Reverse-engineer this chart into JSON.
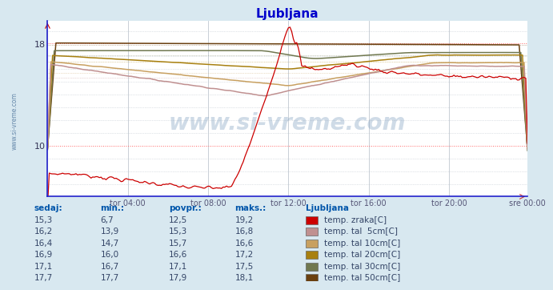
{
  "title": "Ljubljana",
  "bg_color": "#d8e8f0",
  "plot_bg_color": "#ffffff",
  "grid_color": "#c0c8d0",
  "watermark": "www.si-vreme.com",
  "yticks": [
    10,
    18
  ],
  "ylim": [
    6.0,
    19.8
  ],
  "xlim": [
    0,
    287
  ],
  "x_tick_positions": [
    48,
    96,
    144,
    192,
    240,
    287
  ],
  "x_labels": [
    "tor 04:00",
    "tor 08:00",
    "tor 12:00",
    "tor 16:00",
    "tor 20:00",
    "sre 00:00"
  ],
  "series_colors": {
    "temp_zraka": "#cc0000",
    "tal_5cm": "#c09090",
    "tal_10cm": "#c8a060",
    "tal_20cm": "#a88010",
    "tal_30cm": "#707850",
    "tal_50cm": "#6a4010"
  },
  "swatches": [
    "#cc0000",
    "#c09090",
    "#c8a060",
    "#a88010",
    "#707850",
    "#6a4010"
  ],
  "table_headers": [
    "sedaj:",
    "min.:",
    "povpr.:",
    "maks.:",
    "Ljubljana"
  ],
  "table_rows": [
    [
      "15,3",
      "6,7",
      "12,5",
      "19,2",
      "temp. zraka[C]"
    ],
    [
      "16,2",
      "13,9",
      "15,3",
      "16,8",
      "temp. tal  5cm[C]"
    ],
    [
      "16,4",
      "14,7",
      "15,7",
      "16,6",
      "temp. tal 10cm[C]"
    ],
    [
      "16,9",
      "16,0",
      "16,6",
      "17,2",
      "temp. tal 20cm[C]"
    ],
    [
      "17,1",
      "16,7",
      "17,1",
      "17,5",
      "temp. tal 30cm[C]"
    ],
    [
      "17,7",
      "17,7",
      "17,9",
      "18,1",
      "temp. tal 50cm[C]"
    ]
  ],
  "header_color": "#0055aa",
  "num_color": "#334466",
  "title_color": "#0000cc"
}
